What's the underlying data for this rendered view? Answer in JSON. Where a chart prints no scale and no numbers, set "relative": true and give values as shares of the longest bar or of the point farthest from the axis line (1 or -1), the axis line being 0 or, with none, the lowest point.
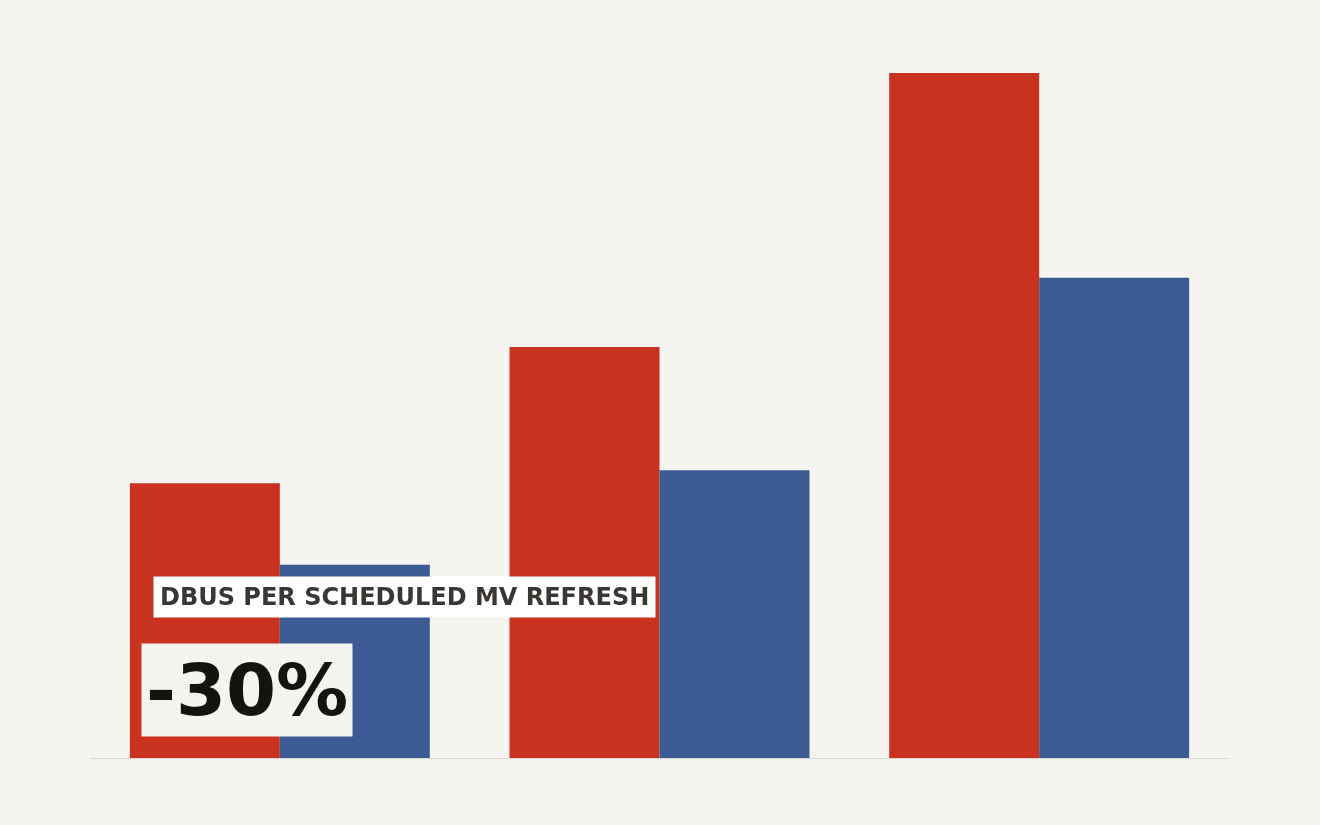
{
  "chart_data": {
    "type": "bar",
    "relative": true,
    "categories": [
      null,
      null,
      null
    ],
    "series": [
      {
        "color": "#c9321f",
        "values": [
          0.401,
          0.6,
          1
        ]
      },
      {
        "color": "#3c5a94",
        "values": [
          0.282,
          0.42,
          0.701
        ]
      }
    ],
    "annotations": [
      "DBUS PER SCHEDULED MV REFRESH",
      "-30%"
    ],
    "legend": false
  }
}
